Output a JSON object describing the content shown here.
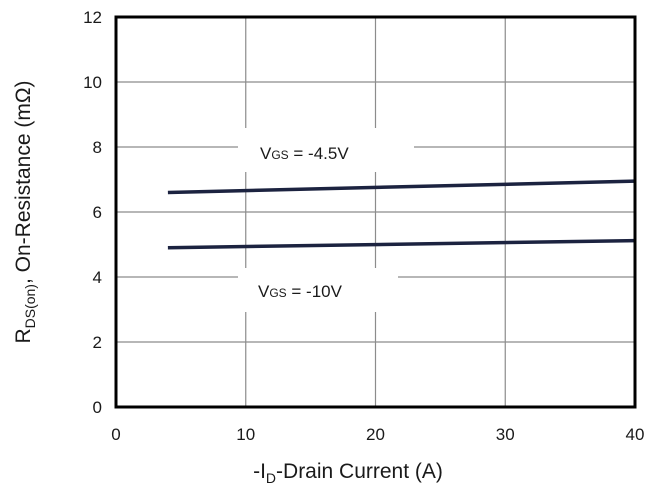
{
  "chart_data": {
    "type": "line",
    "title": "",
    "xlabel": {
      "prefix": "-I",
      "sub": "D",
      "suffix": "-Drain Current (A)"
    },
    "ylabel": {
      "prefix": "R",
      "sub": "DS(on)",
      "suffix": ",  On-Resistance (mΩ)"
    },
    "xlim": [
      0,
      40
    ],
    "ylim": [
      0,
      12
    ],
    "xticks": [
      0,
      10,
      20,
      30,
      40
    ],
    "yticks": [
      0,
      2,
      4,
      6,
      8,
      10,
      12
    ],
    "grid": true,
    "series": [
      {
        "label": {
          "prefix": "V",
          "sub": "GS",
          "suffix": " = -4.5V"
        },
        "x": [
          4,
          40
        ],
        "y": [
          6.6,
          6.95
        ],
        "color": "#1c2340"
      },
      {
        "label": {
          "prefix": "V",
          "sub": "GS",
          "suffix": " = -10V"
        },
        "x": [
          4,
          40
        ],
        "y": [
          4.9,
          5.12
        ],
        "color": "#1c2340"
      }
    ]
  }
}
